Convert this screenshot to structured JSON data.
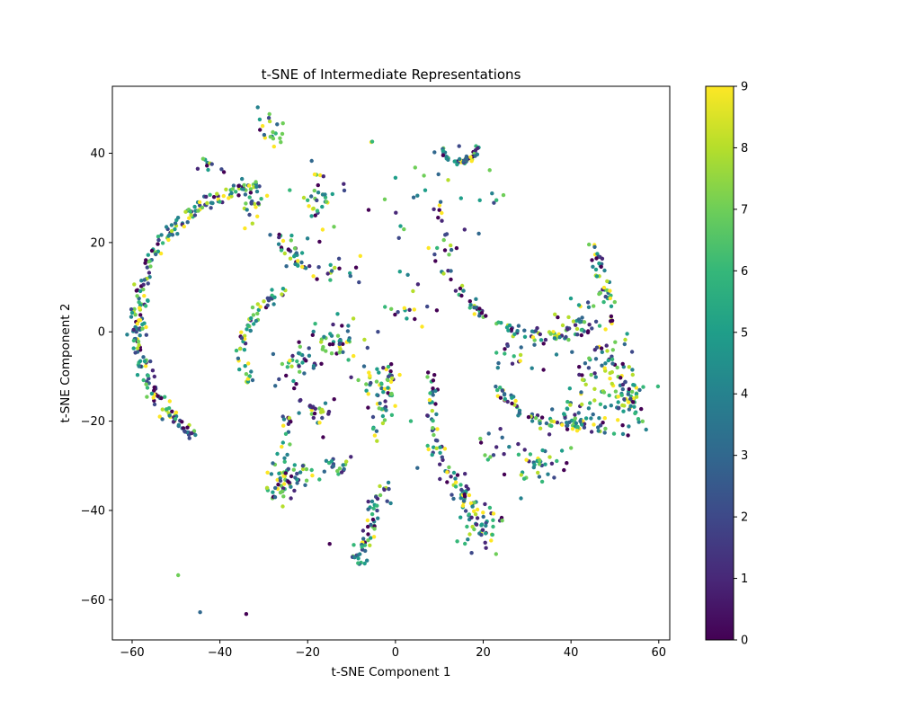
{
  "chart_data": {
    "type": "scatter",
    "title": "t-SNE of Intermediate Representations",
    "xlabel": "t-SNE Component 1",
    "ylabel": "t-SNE Component 2",
    "xlim": [
      -64.5,
      62.5
    ],
    "ylim": [
      -69,
      55
    ],
    "xticks": [
      -60,
      -40,
      -20,
      0,
      20,
      40,
      60
    ],
    "yticks": [
      -60,
      -40,
      -20,
      0,
      20,
      40
    ],
    "grid": false,
    "colorbar": {
      "cmap": "viridis",
      "range": [
        0,
        9
      ],
      "ticks": [
        0,
        1,
        2,
        3,
        4,
        5,
        6,
        7,
        8,
        9
      ],
      "stops": [
        "#440154",
        "#482878",
        "#3e4989",
        "#31688e",
        "#26828e",
        "#1f9e89",
        "#35b779",
        "#6ece58",
        "#b5de2b",
        "#fde725"
      ]
    },
    "clusters": [
      {
        "shape": "arc",
        "cx": -28,
        "cy": 2,
        "r": 31,
        "a0": 95,
        "a1": 235,
        "n": 260,
        "spread": 0.8
      },
      {
        "shape": "line",
        "x0": -30,
        "y0": 48,
        "x1": -27,
        "y1": 43,
        "n": 20,
        "spread": 1.5
      },
      {
        "shape": "line",
        "x0": -27,
        "y0": 22,
        "x1": -21,
        "y1": 14,
        "n": 35,
        "spread": 0.9
      },
      {
        "shape": "arc",
        "cx": -22,
        "cy": -4,
        "r": 13,
        "a0": 100,
        "a1": 215,
        "n": 60,
        "spread": 0.7
      },
      {
        "shape": "blob",
        "cx": -18,
        "cy": 30,
        "sx": 2,
        "sy": 3,
        "n": 35
      },
      {
        "shape": "blob",
        "cx": -32,
        "cy": 28,
        "sx": 1.5,
        "sy": 2,
        "n": 18
      },
      {
        "shape": "blob",
        "cx": -15,
        "cy": 13,
        "sx": 3,
        "sy": 1.5,
        "n": 15
      },
      {
        "shape": "blob",
        "cx": -14,
        "cy": -2,
        "sx": 3,
        "sy": 2.5,
        "n": 40
      },
      {
        "shape": "blob",
        "cx": -22,
        "cy": -7,
        "sx": 3,
        "sy": 2.5,
        "n": 35
      },
      {
        "shape": "blob",
        "cx": -18,
        "cy": -17,
        "sx": 2.5,
        "sy": 2.5,
        "n": 25
      },
      {
        "shape": "line",
        "x0": -27,
        "y0": -33,
        "x1": -11,
        "y1": -29,
        "n": 45,
        "spread": 1.3
      },
      {
        "shape": "blob",
        "cx": -26,
        "cy": -35,
        "sx": 2,
        "sy": 2,
        "n": 35
      },
      {
        "shape": "line",
        "x0": -26,
        "y0": -30,
        "x1": -24,
        "y1": -18,
        "n": 20,
        "spread": 0.8
      },
      {
        "shape": "line",
        "x0": -9,
        "y0": -52,
        "x1": -2,
        "y1": -34,
        "n": 60,
        "spread": 1.2
      },
      {
        "shape": "line",
        "x0": -4,
        "y0": -24,
        "x1": -1,
        "y1": -8,
        "n": 40,
        "spread": 1.1
      },
      {
        "shape": "blob",
        "cx": -5,
        "cy": -12,
        "sx": 2.5,
        "sy": 3,
        "n": 25
      },
      {
        "shape": "blob",
        "cx": 3,
        "cy": 5,
        "sx": 4,
        "sy": 3,
        "n": 15
      },
      {
        "shape": "blob",
        "cx": 9,
        "cy": 28,
        "sx": 6,
        "sy": 6,
        "n": 30
      },
      {
        "shape": "arc",
        "cx": 14.5,
        "cy": 42,
        "r": 4,
        "a0": 190,
        "a1": 355,
        "n": 45,
        "spread": 0.3
      },
      {
        "shape": "blob",
        "cx": 11,
        "cy": 18,
        "sx": 1,
        "sy": 1.5,
        "n": 8
      },
      {
        "shape": "line",
        "x0": 8,
        "y0": -9,
        "x1": 9,
        "y1": -25,
        "n": 30,
        "spread": 0.6
      },
      {
        "shape": "line",
        "x0": 9,
        "y0": -25,
        "x1": 19,
        "y1": -44,
        "n": 45,
        "spread": 1.0
      },
      {
        "shape": "blob",
        "cx": 20,
        "cy": -43,
        "sx": 2.5,
        "sy": 3.5,
        "n": 40
      },
      {
        "shape": "blob",
        "cx": 16,
        "cy": -37,
        "sx": 2,
        "sy": 2.5,
        "n": 18
      },
      {
        "shape": "arc",
        "cx": 35,
        "cy": 25,
        "r": 26,
        "a0": 205,
        "a1": 290,
        "n": 85,
        "spread": 0.8
      },
      {
        "shape": "arc",
        "cx": 40,
        "cy": 0,
        "r": 21,
        "a0": 215,
        "a1": 280,
        "n": 70,
        "spread": 0.8
      },
      {
        "shape": "line",
        "x0": 45,
        "y0": 20,
        "x1": 49,
        "y1": 2,
        "n": 45,
        "spread": 0.9
      },
      {
        "shape": "blob",
        "cx": 47,
        "cy": -8,
        "sx": 3,
        "sy": 4,
        "n": 55
      },
      {
        "shape": "blob",
        "cx": 53,
        "cy": -15,
        "sx": 2,
        "sy": 4,
        "n": 70
      },
      {
        "shape": "blob",
        "cx": 43,
        "cy": -19,
        "sx": 4,
        "sy": 2.5,
        "n": 35
      },
      {
        "shape": "blob",
        "cx": 32,
        "cy": -30,
        "sx": 3,
        "sy": 3.5,
        "n": 35
      },
      {
        "shape": "blob",
        "cx": 22,
        "cy": -25,
        "sx": 2,
        "sy": 2,
        "n": 12
      },
      {
        "shape": "blob",
        "cx": 42,
        "cy": 2,
        "sx": 3,
        "sy": 2,
        "n": 25
      },
      {
        "shape": "blob",
        "cx": 27,
        "cy": -6,
        "sx": 3,
        "sy": 2,
        "n": 15
      },
      {
        "shape": "blob",
        "cx": -43,
        "cy": 37,
        "sx": 2,
        "sy": 1.5,
        "n": 10
      }
    ],
    "outliers": [
      {
        "x": -49.5,
        "y": -54.5,
        "v": 7
      },
      {
        "x": -44.5,
        "y": -62.8,
        "v": 3
      },
      {
        "x": -34,
        "y": -63.2,
        "v": 0
      },
      {
        "x": -5.5,
        "y": 42.5,
        "v": 9
      },
      {
        "x": -5.3,
        "y": 42.6,
        "v": 6
      },
      {
        "x": 0,
        "y": 34.5,
        "v": 5
      },
      {
        "x": 14.5,
        "y": 41.6,
        "v": 2
      },
      {
        "x": 5,
        "y": 30.5,
        "v": 4
      },
      {
        "x": 6.5,
        "y": 35,
        "v": 7
      },
      {
        "x": 22,
        "y": 31,
        "v": 4
      },
      {
        "x": 23,
        "y": 29.5,
        "v": 6
      },
      {
        "x": 19,
        "y": 22,
        "v": 3
      },
      {
        "x": -8,
        "y": 17,
        "v": 9
      },
      {
        "x": 1,
        "y": 13.5,
        "v": 5
      },
      {
        "x": 40,
        "y": -26,
        "v": 7
      },
      {
        "x": 5,
        "y": -30.5,
        "v": 3
      },
      {
        "x": 3.5,
        "y": -20,
        "v": 6
      },
      {
        "x": -4,
        "y": 0,
        "v": 2
      },
      {
        "x": -15,
        "y": -47.5,
        "v": 0
      },
      {
        "x": 12,
        "y": 34,
        "v": 8
      }
    ]
  }
}
